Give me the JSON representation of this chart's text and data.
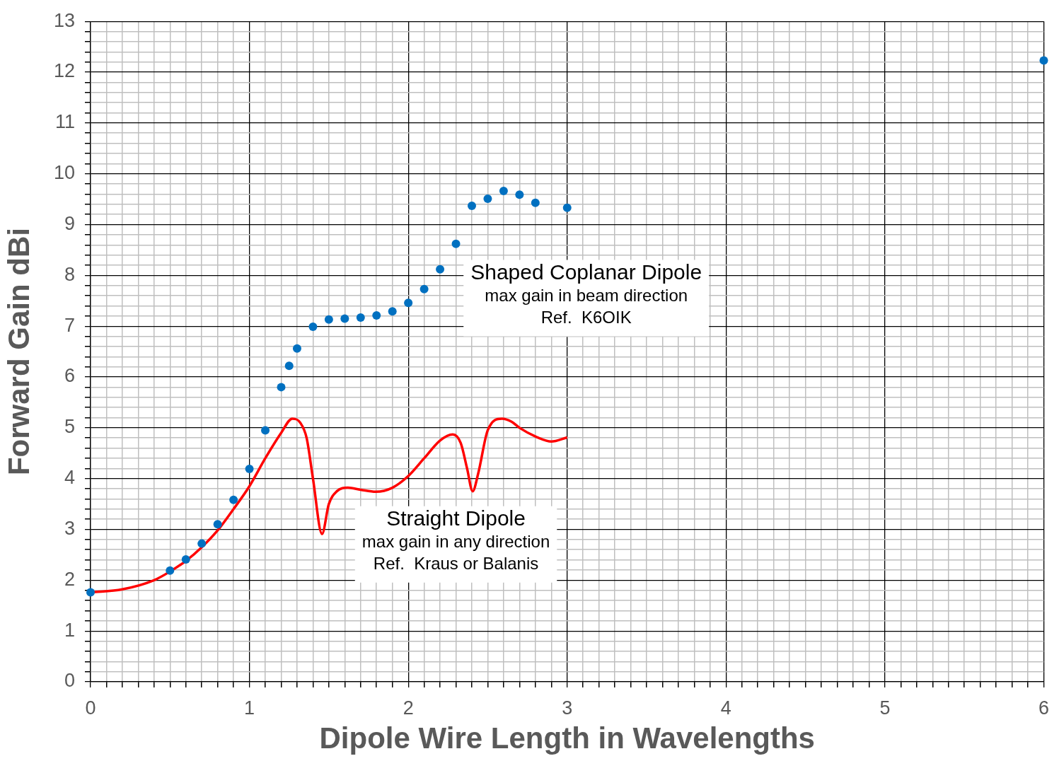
{
  "chart_data": {
    "type": "scatter",
    "xlabel": "Dipole Wire Length in Wavelengths",
    "ylabel": "Forward Gain dBi",
    "xlim": [
      0,
      6
    ],
    "ylim": [
      0,
      13
    ],
    "xticks": [
      0,
      {
        "value": 0.1,
        "label": null
      },
      {
        "value": 0.2,
        "label": null
      },
      {
        "value": 0.3,
        "label": null
      },
      {
        "value": 0.4,
        "label": null
      },
      {
        "value": 0.5,
        "label": null
      },
      {
        "value": 0.6,
        "label": null
      },
      {
        "value": 0.7,
        "label": null
      },
      {
        "value": 0.8,
        "label": null
      },
      {
        "value": 0.9,
        "label": null
      },
      1,
      {
        "value": 1.1,
        "label": null
      },
      {
        "value": 1.2,
        "label": null
      },
      {
        "value": 1.3,
        "label": null
      },
      {
        "value": 1.4,
        "label": null
      },
      {
        "value": 1.5,
        "label": null
      },
      {
        "value": 1.6,
        "label": null
      },
      {
        "value": 1.7,
        "label": null
      },
      {
        "value": 1.8,
        "label": null
      },
      {
        "value": 1.9,
        "label": null
      },
      2,
      {
        "value": 2.1,
        "label": null
      },
      {
        "value": 2.2,
        "label": null
      },
      {
        "value": 2.3,
        "label": null
      },
      {
        "value": 2.4,
        "label": null
      },
      {
        "value": 2.5,
        "label": null
      },
      {
        "value": 2.6,
        "label": null
      },
      {
        "value": 2.7,
        "label": null
      },
      {
        "value": 2.8,
        "label": null
      },
      {
        "value": 2.9,
        "label": null
      },
      3,
      {
        "value": 3.1,
        "label": null
      },
      {
        "value": 3.2,
        "label": null
      },
      {
        "value": 3.3,
        "label": null
      },
      {
        "value": 3.4,
        "label": null
      },
      {
        "value": 3.5,
        "label": null
      },
      {
        "value": 3.6,
        "label": null
      },
      {
        "value": 3.7,
        "label": null
      },
      {
        "value": 3.8,
        "label": null
      },
      {
        "value": 3.9,
        "label": null
      },
      4,
      {
        "value": 4.1,
        "label": null
      },
      {
        "value": 4.2,
        "label": null
      },
      {
        "value": 4.3,
        "label": null
      },
      {
        "value": 4.4,
        "label": null
      },
      {
        "value": 4.5,
        "label": null
      },
      {
        "value": 4.6,
        "label": null
      },
      {
        "value": 4.7,
        "label": null
      },
      {
        "value": 4.8,
        "label": null
      },
      {
        "value": 4.9,
        "label": null
      },
      5,
      {
        "value": 5.1,
        "label": null
      },
      {
        "value": 5.2,
        "label": null
      },
      {
        "value": 5.3,
        "label": null
      },
      {
        "value": 5.4,
        "label": null
      },
      {
        "value": 5.5,
        "label": null
      },
      {
        "value": 5.6,
        "label": null
      },
      {
        "value": 5.7,
        "label": null
      },
      {
        "value": 5.8,
        "label": null
      },
      {
        "value": 5.9,
        "label": null
      },
      6
    ],
    "yticks": [
      0,
      {
        "value": 0.2,
        "label": null
      },
      {
        "value": 0.4,
        "label": null
      },
      {
        "value": 0.6,
        "label": null
      },
      {
        "value": 0.8,
        "label": null
      },
      1,
      {
        "value": 1.2,
        "label": null
      },
      {
        "value": 1.4,
        "label": null
      },
      {
        "value": 1.6,
        "label": null
      },
      {
        "value": 1.8,
        "label": null
      },
      2,
      {
        "value": 2.2,
        "label": null
      },
      {
        "value": 2.4,
        "label": null
      },
      {
        "value": 2.6,
        "label": null
      },
      {
        "value": 2.8,
        "label": null
      },
      3,
      {
        "value": 3.2,
        "label": null
      },
      {
        "value": 3.4,
        "label": null
      },
      {
        "value": 3.6,
        "label": null
      },
      {
        "value": 3.8,
        "label": null
      },
      4,
      {
        "value": 4.2,
        "label": null
      },
      {
        "value": 4.4,
        "label": null
      },
      {
        "value": 4.6,
        "label": null
      },
      {
        "value": 4.8,
        "label": null
      },
      5,
      {
        "value": 5.2,
        "label": null
      },
      {
        "value": 5.4,
        "label": null
      },
      {
        "value": 5.6,
        "label": null
      },
      {
        "value": 5.8,
        "label": null
      },
      6,
      {
        "value": 6.2,
        "label": null
      },
      {
        "value": 6.4,
        "label": null
      },
      {
        "value": 6.6,
        "label": null
      },
      {
        "value": 6.8,
        "label": null
      },
      7,
      {
        "value": 7.2,
        "label": null
      },
      {
        "value": 7.4,
        "label": null
      },
      {
        "value": 7.6,
        "label": null
      },
      {
        "value": 7.8,
        "label": null
      },
      8,
      {
        "value": 8.2,
        "label": null
      },
      {
        "value": 8.4,
        "label": null
      },
      {
        "value": 8.6,
        "label": null
      },
      {
        "value": 8.8,
        "label": null
      },
      9,
      {
        "value": 9.2,
        "label": null
      },
      {
        "value": 9.4,
        "label": null
      },
      {
        "value": 9.6,
        "label": null
      },
      {
        "value": 9.8,
        "label": null
      },
      10,
      {
        "value": 10.2,
        "label": null
      },
      {
        "value": 10.4,
        "label": null
      },
      {
        "value": 10.6,
        "label": null
      },
      {
        "value": 10.8,
        "label": null
      },
      11,
      {
        "value": 11.2,
        "label": null
      },
      {
        "value": 11.4,
        "label": null
      },
      {
        "value": 11.6,
        "label": null
      },
      {
        "value": 11.8,
        "label": null
      },
      12,
      {
        "value": 12.2,
        "label": null
      },
      {
        "value": 12.4,
        "label": null
      },
      {
        "value": 12.6,
        "label": null
      },
      {
        "value": 12.8,
        "label": null
      },
      13
    ],
    "grid": true,
    "marker": "circle",
    "series": [
      {
        "name": "Shaped Coplanar Dipole",
        "color": "#0070c0",
        "x": [
          0,
          0.5,
          0.6,
          0.7,
          0.8,
          0.9,
          1.0,
          1.1,
          1.2,
          1.25,
          1.3,
          1.4,
          1.5,
          1.6,
          1.7,
          1.8,
          1.9,
          2.0,
          2.1,
          2.2,
          2.3,
          2.4,
          2.5,
          2.6,
          2.7,
          2.8,
          3.0,
          6.0
        ],
        "values": [
          1.76,
          2.19,
          2.41,
          2.72,
          3.1,
          3.58,
          4.19,
          4.95,
          5.8,
          6.22,
          6.56,
          6.99,
          7.13,
          7.15,
          7.17,
          7.21,
          7.29,
          7.46,
          7.73,
          8.12,
          8.62,
          9.37,
          9.51,
          9.66,
          9.59,
          9.43,
          9.33,
          12.23
        ]
      },
      {
        "name": "Straight Dipole",
        "type": "line",
        "marker": "none",
        "line_style": "solid",
        "color": "#ff0000",
        "x": [
          0,
          0.2,
          0.4,
          0.5,
          0.6,
          0.7,
          0.8,
          0.9,
          1.0,
          1.1,
          1.2,
          1.27,
          1.32,
          1.36,
          1.4,
          1.457,
          1.5,
          1.55,
          1.62,
          1.7,
          1.795,
          1.9,
          2.0,
          2.1,
          2.2,
          2.28,
          2.33,
          2.37,
          2.405,
          2.44,
          2.5,
          2.59,
          2.65,
          2.7,
          2.8,
          2.9,
          3.0
        ],
        "values": [
          1.76,
          1.82,
          2.0,
          2.17,
          2.38,
          2.65,
          2.98,
          3.4,
          3.85,
          4.4,
          4.9,
          5.18,
          5.1,
          4.8,
          4.0,
          2.91,
          3.5,
          3.75,
          3.82,
          3.78,
          3.74,
          3.82,
          4.05,
          4.4,
          4.75,
          4.87,
          4.7,
          4.2,
          3.75,
          4.1,
          4.95,
          5.18,
          5.12,
          5.0,
          4.83,
          4.73,
          4.81
        ]
      }
    ],
    "annotations": [
      "max gain in beam direction",
      "Ref.  K6OIK",
      "max gain in any direction",
      "Ref.  Kraus or Balanis"
    ]
  }
}
